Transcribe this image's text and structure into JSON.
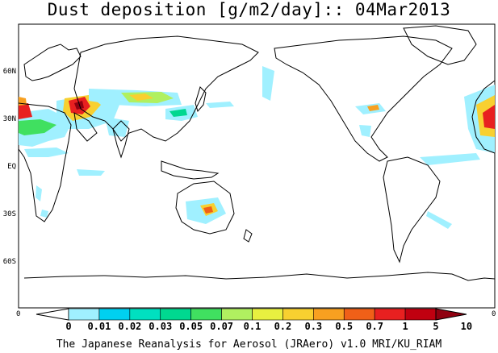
{
  "title": "Dust deposition [g/m2/day]:: 04Mar2013",
  "footer": "The Japanese Reanalysis for Aerosol (JRAero) v1.0 MRI/KU_RIAM",
  "lat_labels": [
    "60N",
    "30N",
    "EQ",
    "30S",
    "60S"
  ],
  "lat_values": [
    60,
    30,
    0,
    -30,
    -60
  ],
  "lon_labels": [
    "0",
    "0"
  ],
  "colorbar": {
    "levels": [
      "0",
      "0.01",
      "0.02",
      "0.03",
      "0.05",
      "0.07",
      "0.1",
      "0.2",
      "0.3",
      "0.5",
      "0.7",
      "1",
      "5",
      "10"
    ],
    "colors": [
      "#ffffff",
      "#a0f0ff",
      "#00d0f0",
      "#00e0c0",
      "#00d890",
      "#40e060",
      "#b0f060",
      "#e8f040",
      "#f8d030",
      "#f8a020",
      "#f06018",
      "#e82020",
      "#c00010",
      "#900010"
    ]
  },
  "legend_colors": {
    "coast": "#000000",
    "dust_low": "#a0f0ff",
    "dust_mid": "#f8d030",
    "dust_high": "#e82020"
  }
}
